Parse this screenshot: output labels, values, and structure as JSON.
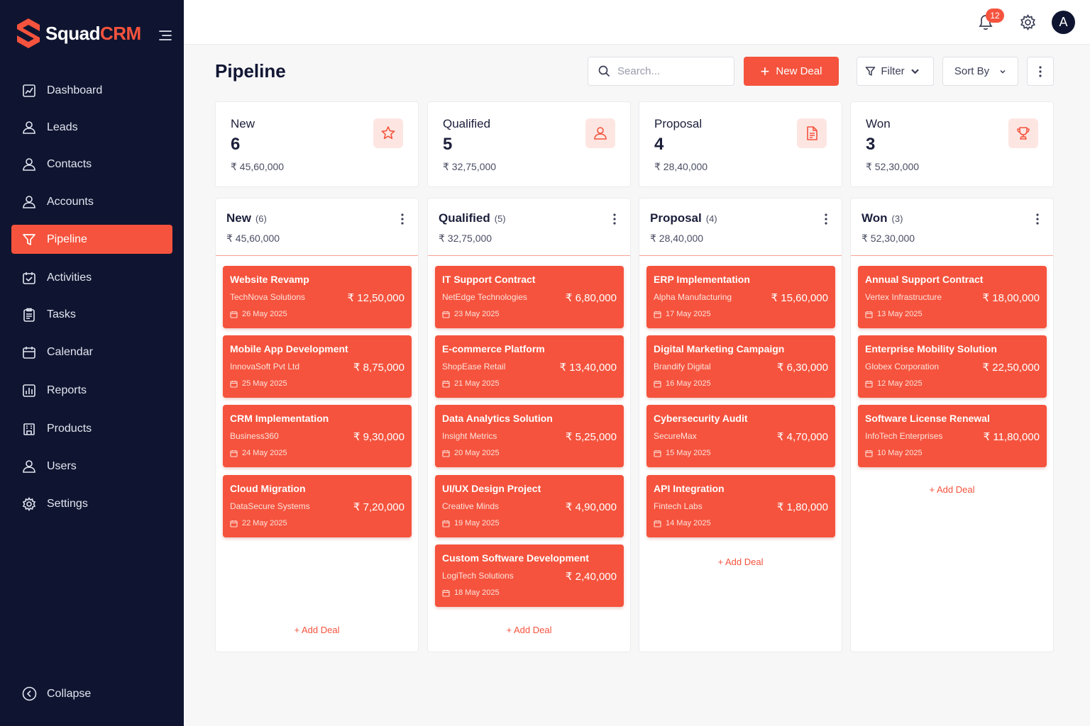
{
  "brand": {
    "name_part1": "Squad",
    "name_part2": "CRM"
  },
  "sidebar": {
    "items": [
      {
        "label": "Dashboard",
        "icon": "chart-icon"
      },
      {
        "label": "Leads",
        "icon": "user-icon"
      },
      {
        "label": "Contacts",
        "icon": "user-icon"
      },
      {
        "label": "Accounts",
        "icon": "user-icon"
      },
      {
        "label": "Pipeline",
        "icon": "funnel-icon",
        "active": true
      },
      {
        "label": "Activities",
        "icon": "calendar-check-icon"
      },
      {
        "label": "Tasks",
        "icon": "clipboard-icon"
      },
      {
        "label": "Calendar",
        "icon": "calendar-icon"
      },
      {
        "label": "Reports",
        "icon": "report-icon"
      },
      {
        "label": "Products",
        "icon": "building-icon"
      },
      {
        "label": "Users",
        "icon": "user-icon"
      },
      {
        "label": "Settings",
        "icon": "gear-icon"
      }
    ],
    "collapse_label": "Collapse"
  },
  "topbar": {
    "notification_count": "12",
    "avatar_initial": "A"
  },
  "header": {
    "title": "Pipeline",
    "search_placeholder": "Search...",
    "new_deal_label": "New Deal",
    "filter_label": "Filter",
    "sort_label": "Sort By"
  },
  "summary": [
    {
      "label": "New",
      "count": "6",
      "amount": "₹ 45,60,000",
      "icon": "star-icon"
    },
    {
      "label": "Qualified",
      "count": "5",
      "amount": "₹ 32,75,000",
      "icon": "user-icon"
    },
    {
      "label": "Proposal",
      "count": "4",
      "amount": "₹ 28,40,000",
      "icon": "document-icon"
    },
    {
      "label": "Won",
      "count": "3",
      "amount": "₹ 52,30,000",
      "icon": "trophy-icon"
    }
  ],
  "columns": [
    {
      "title": "New",
      "count": "(6)",
      "amount": "₹ 45,60,000",
      "add_label": "+ Add Deal",
      "deals": [
        {
          "title": "Website Revamp",
          "company": "TechNova Solutions",
          "amount": "₹ 12,50,000",
          "date": "26 May 2025"
        },
        {
          "title": "Mobile App Development",
          "company": "InnovaSoft Pvt Ltd",
          "amount": "₹ 8,75,000",
          "date": "25 May 2025"
        },
        {
          "title": "CRM Implementation",
          "company": "Business360",
          "amount": "₹ 9,30,000",
          "date": "24 May 2025"
        },
        {
          "title": "Cloud Migration",
          "company": "DataSecure Systems",
          "amount": "₹ 7,20,000",
          "date": "22 May 2025"
        }
      ]
    },
    {
      "title": "Qualified",
      "count": "(5)",
      "amount": "₹ 32,75,000",
      "add_label": "+ Add Deal",
      "deals": [
        {
          "title": "IT Support Contract",
          "company": "NetEdge Technologies",
          "amount": "₹ 6,80,000",
          "date": "23 May 2025"
        },
        {
          "title": "E-commerce Platform",
          "company": "ShopEase Retail",
          "amount": "₹ 13,40,000",
          "date": "21 May 2025"
        },
        {
          "title": "Data Analytics Solution",
          "company": "Insight Metrics",
          "amount": "₹ 5,25,000",
          "date": "20 May 2025"
        },
        {
          "title": "UI/UX Design Project",
          "company": "Creative Minds",
          "amount": "₹ 4,90,000",
          "date": "19 May 2025"
        },
        {
          "title": "Custom Software Development",
          "company": "LogiTech Solutions",
          "amount": "₹ 2,40,000",
          "date": "18 May 2025"
        }
      ]
    },
    {
      "title": "Proposal",
      "count": "(4)",
      "amount": "₹ 28,40,000",
      "add_label": "+ Add Deal",
      "deals": [
        {
          "title": "ERP Implementation",
          "company": "Alpha Manufacturing",
          "amount": "₹ 15,60,000",
          "date": "17 May 2025"
        },
        {
          "title": "Digital Marketing Campaign",
          "company": "Brandify Digital",
          "amount": "₹ 6,30,000",
          "date": "16 May 2025"
        },
        {
          "title": "Cybersecurity Audit",
          "company": "SecureMax",
          "amount": "₹ 4,70,000",
          "date": "15 May 2025"
        },
        {
          "title": "API Integration",
          "company": "Fintech Labs",
          "amount": "₹ 1,80,000",
          "date": "14 May 2025"
        }
      ]
    },
    {
      "title": "Won",
      "count": "(3)",
      "amount": "₹ 52,30,000",
      "add_label": "+ Add Deal",
      "deals": [
        {
          "title": "Annual Support Contract",
          "company": "Vertex Infrastructure",
          "amount": "₹ 18,00,000",
          "date": "13 May 2025"
        },
        {
          "title": "Enterprise Mobility Solution",
          "company": "Globex Corporation",
          "amount": "₹ 22,50,000",
          "date": "12 May 2025"
        },
        {
          "title": "Software License Renewal",
          "company": "InfoTech Enterprises",
          "amount": "₹ 11,80,000",
          "date": "10 May 2025"
        }
      ]
    }
  ],
  "colors": {
    "accent": "#f5533d",
    "sidebar_bg": "#0f1530",
    "accent_soft": "#fde6e2"
  }
}
